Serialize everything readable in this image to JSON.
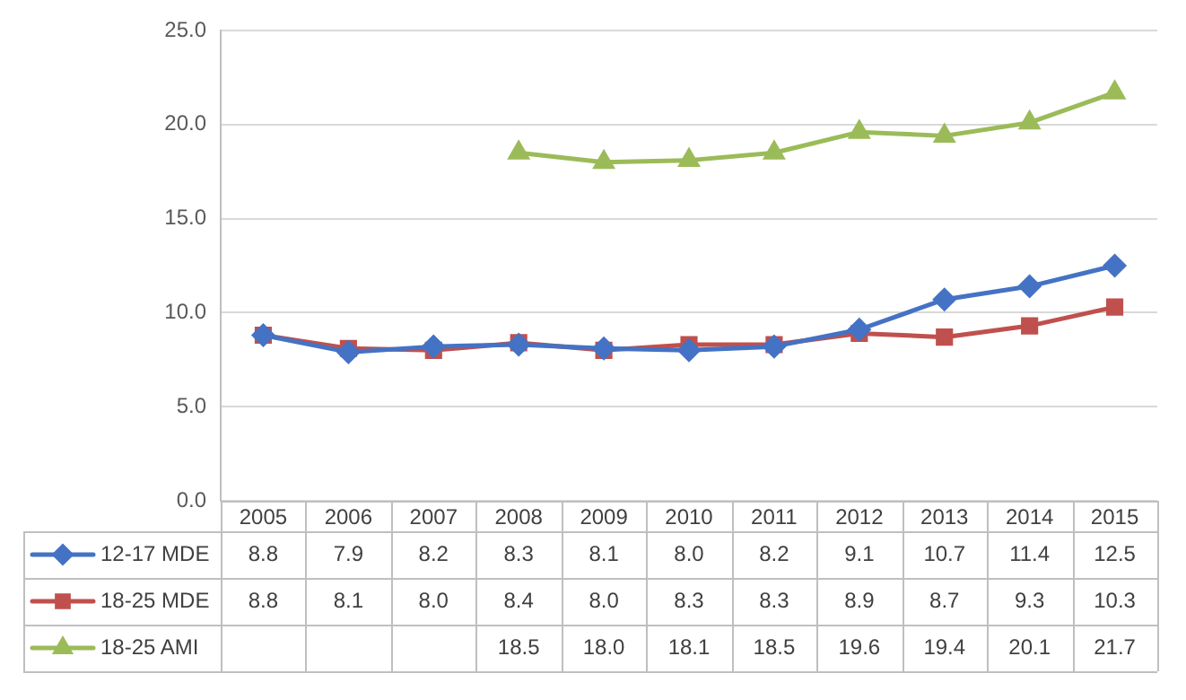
{
  "chart_data": {
    "type": "line",
    "categories": [
      "2005",
      "2006",
      "2007",
      "2008",
      "2009",
      "2010",
      "2011",
      "2012",
      "2013",
      "2014",
      "2015"
    ],
    "ylim": [
      0,
      25
    ],
    "yticks": [
      {
        "value": 0,
        "label": "0.0"
      },
      {
        "value": 5,
        "label": "5.0"
      },
      {
        "value": 10,
        "label": "10.0"
      },
      {
        "value": 15,
        "label": "15.0"
      },
      {
        "value": 20,
        "label": "20.0"
      },
      {
        "value": 25,
        "label": "25.0"
      }
    ],
    "grid": "y",
    "legend": "bottom",
    "line_style": "solid",
    "series": [
      {
        "name": "12-17 MDE",
        "color": "#4472c4",
        "marker": "diamond",
        "values": [
          8.8,
          7.9,
          8.2,
          8.3,
          8.1,
          8.0,
          8.2,
          9.1,
          10.7,
          11.4,
          12.5
        ],
        "value_labels": [
          "8.8",
          "7.9",
          "8.2",
          "8.3",
          "8.1",
          "8.0",
          "8.2",
          "9.1",
          "10.7",
          "11.4",
          "12.5"
        ]
      },
      {
        "name": "18-25 MDE",
        "color": "#c0504d",
        "marker": "square",
        "values": [
          8.8,
          8.1,
          8.0,
          8.4,
          8.0,
          8.3,
          8.3,
          8.9,
          8.7,
          9.3,
          10.3
        ],
        "value_labels": [
          "8.8",
          "8.1",
          "8.0",
          "8.4",
          "8.0",
          "8.3",
          "8.3",
          "8.9",
          "8.7",
          "9.3",
          "10.3"
        ]
      },
      {
        "name": "18-25 AMI",
        "color": "#9bbb59",
        "marker": "triangle",
        "values": [
          null,
          null,
          null,
          18.5,
          18.0,
          18.1,
          18.5,
          19.6,
          19.4,
          20.1,
          21.7
        ],
        "value_labels": [
          null,
          null,
          null,
          "18.5",
          "18.0",
          "18.1",
          "18.5",
          "19.6",
          "19.4",
          "20.1",
          "21.7"
        ]
      }
    ]
  }
}
